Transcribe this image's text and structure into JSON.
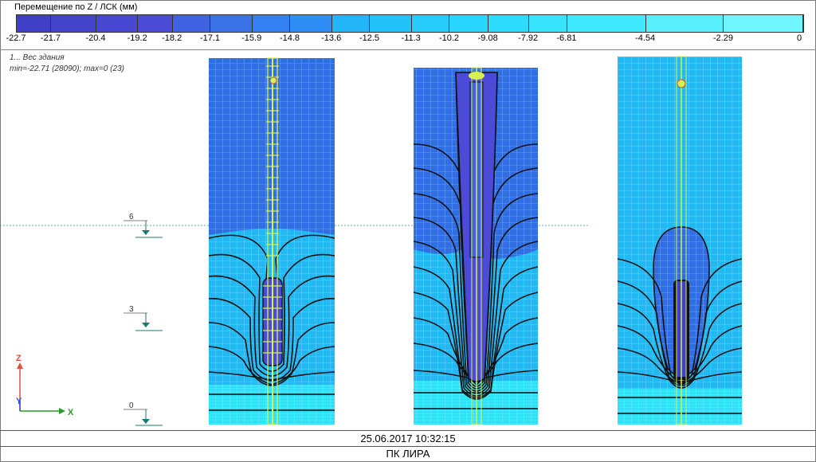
{
  "legend": {
    "title": "Перемещение по Z / ЛСК (мм)",
    "ticks": [
      "-22.7",
      "-21.7",
      "-20.4",
      "-19.2",
      "-18.2",
      "-17.1",
      "-15.9",
      "-14.8",
      "-13.6",
      "-12.5",
      "-11.3",
      "-10.2",
      "-9.08",
      "-7.92",
      "-6.81",
      "-4.54",
      "-2.29",
      "0"
    ],
    "colors": [
      "#3f3fc8",
      "#4343cc",
      "#4747d2",
      "#4b4bd8",
      "#3f62e0",
      "#3a73e8",
      "#3580f0",
      "#2f8ef6",
      "#22b6f8",
      "#24c2fa",
      "#26cdfb",
      "#28d5fc",
      "#2ddcfd",
      "#38e3fd",
      "#40e9fd",
      "#58effd",
      "#6ff5fe"
    ]
  },
  "case": {
    "title": "1... Вес здания",
    "minmax": "min=-22.71 (28090); max=0 (23)"
  },
  "levels": [
    "6",
    "3",
    "0"
  ],
  "axes": {
    "z": "Z",
    "y": "Y",
    "x": "X"
  },
  "colors": {
    "deep": "#2f6fe3",
    "mid": "#22b8f2",
    "light": "#2fe0f6",
    "mesh": "#d7f052",
    "contour": "#111111",
    "pile": "#4b4bd8"
  },
  "status": {
    "timestamp": "25.06.2017 10:32:15",
    "product": "ПК ЛИРА"
  }
}
